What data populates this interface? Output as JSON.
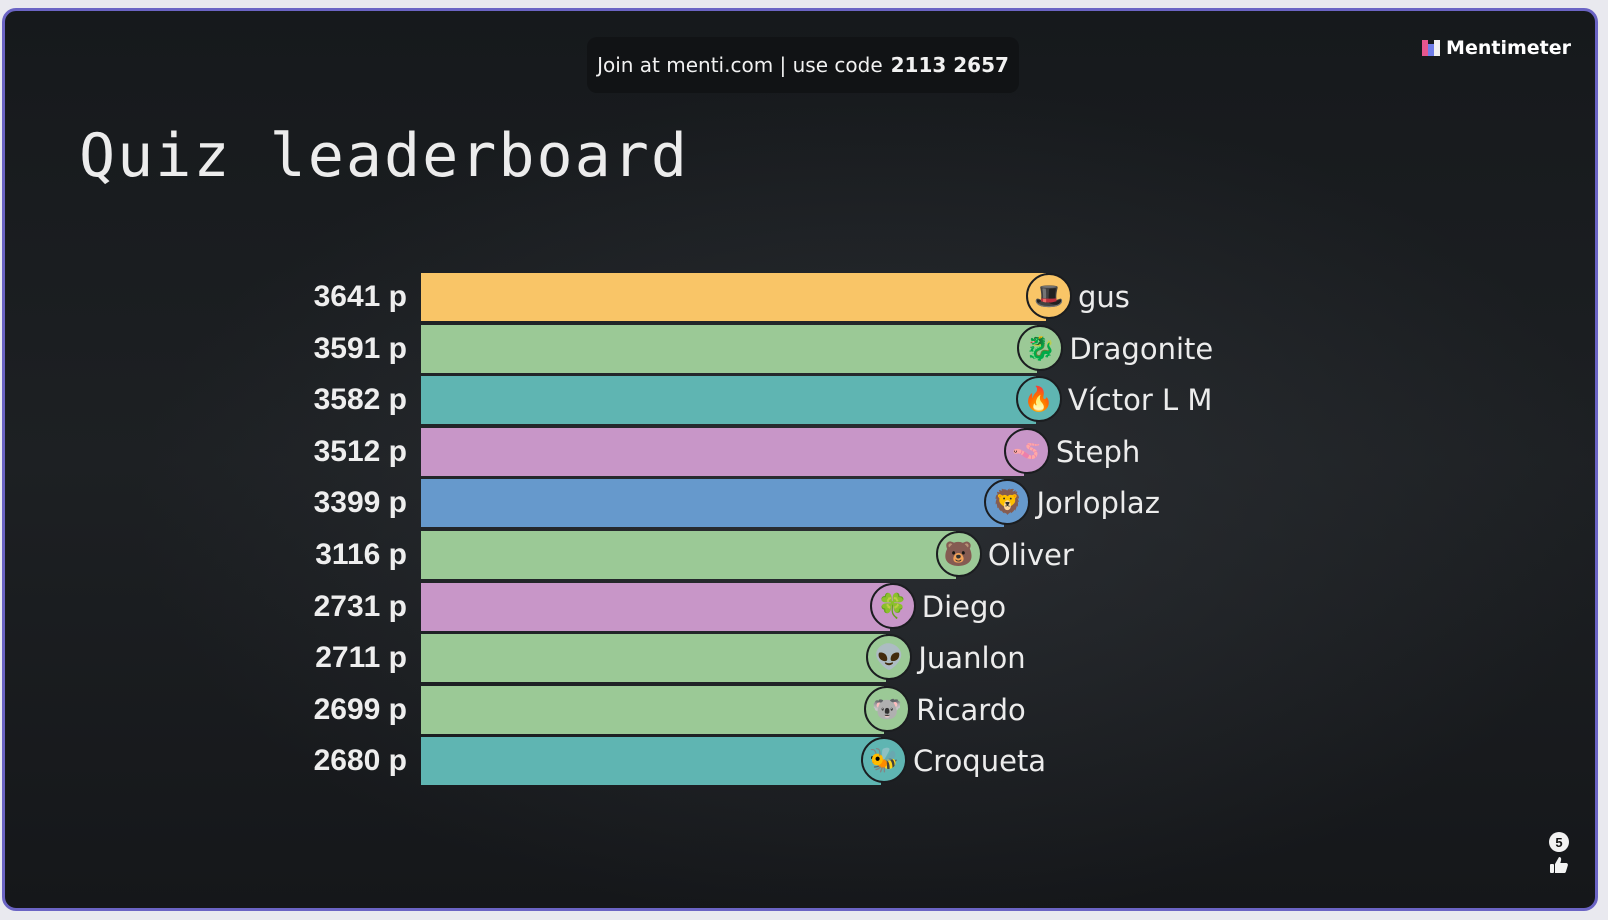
{
  "header": {
    "join_text": "Join at menti.com | use code",
    "code": "2113 2657",
    "brand": "Mentimeter"
  },
  "slide": {
    "title": "Quiz leaderboard"
  },
  "reactions": {
    "count": "5",
    "icon": "thumbs-up-icon"
  },
  "chart_data": {
    "type": "bar",
    "orientation": "horizontal",
    "xlim": [
      0,
      3641
    ],
    "unit_suffix": " p",
    "entries": [
      {
        "name": "gus",
        "value": 3641,
        "label": "3641 p",
        "color": "#f9c567",
        "avatar": "top-hat-icon"
      },
      {
        "name": "Dragonite",
        "value": 3591,
        "label": "3591 p",
        "color": "#9bc996",
        "avatar": "dragon-icon"
      },
      {
        "name": "Víctor L M",
        "value": 3582,
        "label": "3582 p",
        "color": "#5fb5b2",
        "avatar": "fire-icon"
      },
      {
        "name": "Steph",
        "value": 3512,
        "label": "3512 p",
        "color": "#c896c8",
        "avatar": "worm-icon"
      },
      {
        "name": "Jorloplaz",
        "value": 3399,
        "label": "3399 p",
        "color": "#6699cc",
        "avatar": "lion-icon"
      },
      {
        "name": "Oliver",
        "value": 3116,
        "label": "3116 p",
        "color": "#9bc996",
        "avatar": "bear-icon"
      },
      {
        "name": "Diego",
        "value": 2731,
        "label": "2731 p",
        "color": "#c896c8",
        "avatar": "four-leaf-clover-icon"
      },
      {
        "name": "Juanlon",
        "value": 2711,
        "label": "2711 p",
        "color": "#9bc996",
        "avatar": "alien-icon"
      },
      {
        "name": "Ricardo",
        "value": 2699,
        "label": "2699 p",
        "color": "#9bc996",
        "avatar": "koala-icon"
      },
      {
        "name": "Croqueta",
        "value": 2680,
        "label": "2680 p",
        "color": "#5fb5b2",
        "avatar": "bee-icon"
      }
    ]
  }
}
